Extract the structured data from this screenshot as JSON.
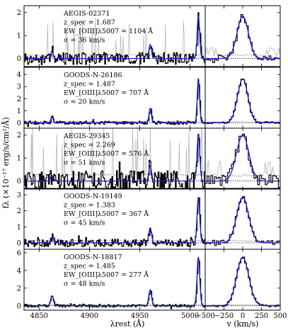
{
  "chart_data": {
    "type": "line",
    "xlabel_left": "λrest (Å)",
    "xlabel_right": "v (km/s)",
    "ylabel": "fλ (×10⁻¹⁷ erg/s/cm²/Å)",
    "xlim_left": [
      4835,
      5015
    ],
    "xlim_right": [
      -500,
      500
    ],
    "xticks_left": [
      "4850",
      "4900",
      "4950",
      "5000"
    ],
    "xtick_values_left": [
      4850,
      4900,
      4950,
      5000
    ],
    "xticks_right": [
      "−500",
      "−250",
      "0",
      "250",
      "500"
    ],
    "xtick_values_right": [
      -500,
      -250,
      0,
      250,
      500
    ],
    "colors": {
      "data": "#000000",
      "model": "#1f1fd0",
      "error": "#b0b0b0",
      "zero": "#000000"
    },
    "lines": {
      "hbeta": 4862.7,
      "oiii4959": 4960.3,
      "oiii5007": 5008.2
    },
    "panels": [
      {
        "name": "AEGIS-02371",
        "z_line": "z_spec = 1.687",
        "ew_line": "EW_[OIII]λ5007 = 1104 Å",
        "sigma_line": "σ = 36 km/s",
        "ylim": [
          -0.35,
          2.3
        ],
        "yticks": [
          0,
          1,
          2
        ],
        "ytick_labels": [
          "0",
          "1",
          "2"
        ],
        "peak_5007": 1.85,
        "ratio_4959": 0.33,
        "hbeta": 0.32,
        "sigma_kms": 36,
        "noise": 0.22,
        "error_spikes": true
      },
      {
        "name": "GOODS-N-26186",
        "z_line": "z_spec = 1.487",
        "ew_line": "EW_[OIII]λ5007 = 707 Å",
        "sigma_line": "σ = 20 km/s",
        "ylim": [
          -0.45,
          4.6
        ],
        "yticks": [
          0,
          1,
          2,
          3,
          4
        ],
        "ytick_labels": [
          "0",
          "1",
          "2",
          "3",
          "4"
        ],
        "peak_5007": 3.65,
        "ratio_4959": 0.33,
        "hbeta": 0.45,
        "sigma_kms": 20,
        "noise": 0.12,
        "error_spikes": false
      },
      {
        "name": "AEGIS-29345",
        "z_line": "z_spec = 2.269",
        "ew_line": "EW_[OIII]λ5007 = 576 Å",
        "sigma_line": "σ = 51 km/s",
        "ylim": [
          -0.35,
          2.3
        ],
        "yticks": [
          0,
          1,
          2
        ],
        "ytick_labels": [
          "0",
          "1",
          "2"
        ],
        "peak_5007": 2.0,
        "ratio_4959": 0.33,
        "hbeta": 0.25,
        "sigma_kms": 51,
        "noise": 0.38,
        "error_spikes": true
      },
      {
        "name": "GOODS-N-19149",
        "z_line": "z_spec = 1.383",
        "ew_line": "EW_[OIII]λ5007 = 367 Å",
        "sigma_line": "σ = 45 km/s",
        "ylim": [
          -0.4,
          3.4
        ],
        "yticks": [
          0,
          1,
          2,
          3
        ],
        "ytick_labels": [
          "0",
          "1",
          "2",
          "3"
        ],
        "peak_5007": 2.85,
        "ratio_4959": 0.33,
        "hbeta": 0.35,
        "sigma_kms": 45,
        "noise": 0.2,
        "error_spikes": false
      },
      {
        "name": "GOODS-N-18817",
        "z_line": "z_spec = 1.485",
        "ew_line": "EW_[OIII]λ5007 = 277 Å",
        "sigma_line": "σ = 48 km/s",
        "ylim": [
          -0.5,
          6.4
        ],
        "yticks": [
          0,
          2,
          4,
          6
        ],
        "ytick_labels": [
          "0",
          "2",
          "4",
          "6"
        ],
        "peak_5007": 5.5,
        "ratio_4959": 0.33,
        "hbeta": 1.1,
        "sigma_kms": 48,
        "noise": 0.14,
        "error_spikes": false
      }
    ]
  }
}
